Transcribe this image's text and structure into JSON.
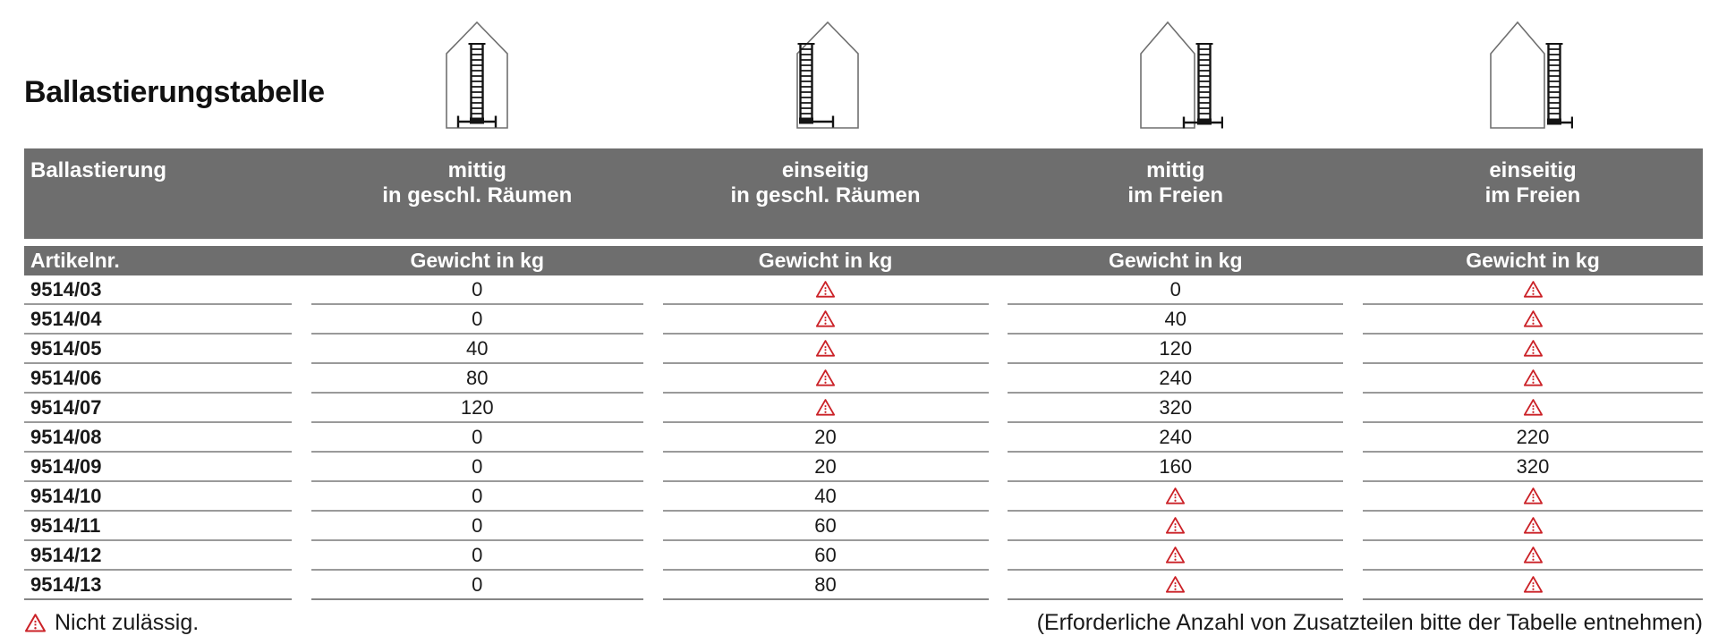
{
  "title": "Ballastierungstabelle",
  "colors": {
    "header_bg": "#6e6e6e",
    "header_text": "#ffffff",
    "warning_red": "#cb2127",
    "row_line": "#9a9a9a",
    "text": "#1a1a1a"
  },
  "table": {
    "corner_label": "Ballastierung",
    "subheader_left": "Artikelnr.",
    "weight_header": "Gewicht in kg",
    "columns": [
      {
        "line1": "mittig",
        "line2": "in geschl. Räumen",
        "icon": "house-ladder-center-indoor-icon"
      },
      {
        "line1": "einseitig",
        "line2": "in geschl. Räumen",
        "icon": "house-ladder-side-indoor-icon"
      },
      {
        "line1": "mittig",
        "line2": "im Freien",
        "icon": "house-ladder-center-outdoor-icon"
      },
      {
        "line1": "einseitig",
        "line2": "im Freien",
        "icon": "house-ladder-side-outdoor-icon"
      }
    ],
    "warning_meaning": "Nicht zulässig.",
    "rows": [
      {
        "article": "9514/03",
        "values": [
          "0",
          "warn",
          "0",
          "warn"
        ]
      },
      {
        "article": "9514/04",
        "values": [
          "0",
          "warn",
          "40",
          "warn"
        ]
      },
      {
        "article": "9514/05",
        "values": [
          "40",
          "warn",
          "120",
          "warn"
        ]
      },
      {
        "article": "9514/06",
        "values": [
          "80",
          "warn",
          "240",
          "warn"
        ]
      },
      {
        "article": "9514/07",
        "values": [
          "120",
          "warn",
          "320",
          "warn"
        ]
      },
      {
        "article": "9514/08",
        "values": [
          "0",
          "20",
          "240",
          "220"
        ]
      },
      {
        "article": "9514/09",
        "values": [
          "0",
          "20",
          "160",
          "320"
        ]
      },
      {
        "article": "9514/10",
        "values": [
          "0",
          "40",
          "warn",
          "warn"
        ]
      },
      {
        "article": "9514/11",
        "values": [
          "0",
          "60",
          "warn",
          "warn"
        ]
      },
      {
        "article": "9514/12",
        "values": [
          "0",
          "60",
          "warn",
          "warn"
        ]
      },
      {
        "article": "9514/13",
        "values": [
          "0",
          "80",
          "warn",
          "warn"
        ]
      }
    ]
  },
  "footer": {
    "legend": "Nicht zulässig.",
    "note": "(Erforderliche Anzahl von Zusatzteilen bitte der Tabelle entnehmen)"
  }
}
